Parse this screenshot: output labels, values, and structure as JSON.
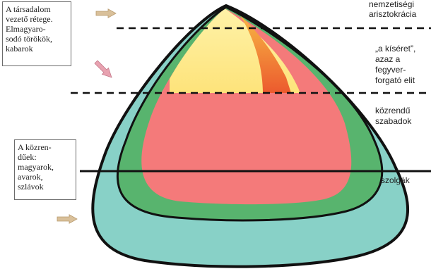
{
  "colors": {
    "outer": "#88d1c7",
    "middle": "#58b46e",
    "inner": "#f47a7a",
    "top_yellow": "#fde37a",
    "top_orange": "#f07a3a",
    "arrow_fill": "#d9c09a",
    "arrow_pink": "#e8a2b0"
  },
  "left_boxes": {
    "elite": [
      "A társadalom",
      "vezető rétege.",
      "Elmagyaro-",
      "sodó törökök,",
      "kabarok"
    ],
    "commoners": [
      "A közren-",
      "dűek:",
      "magyarok,",
      "avarok,",
      "szlávok"
    ]
  },
  "right_labels": {
    "aristocracy": [
      "nemzetiségi",
      "arisztokrácia"
    ],
    "retinue": [
      "„a kíséret”,",
      "azaz a",
      "fegyver-",
      "forgató elit"
    ],
    "freemen": [
      "közrendű",
      "szabadok"
    ],
    "servants": [
      "szolgák"
    ]
  }
}
